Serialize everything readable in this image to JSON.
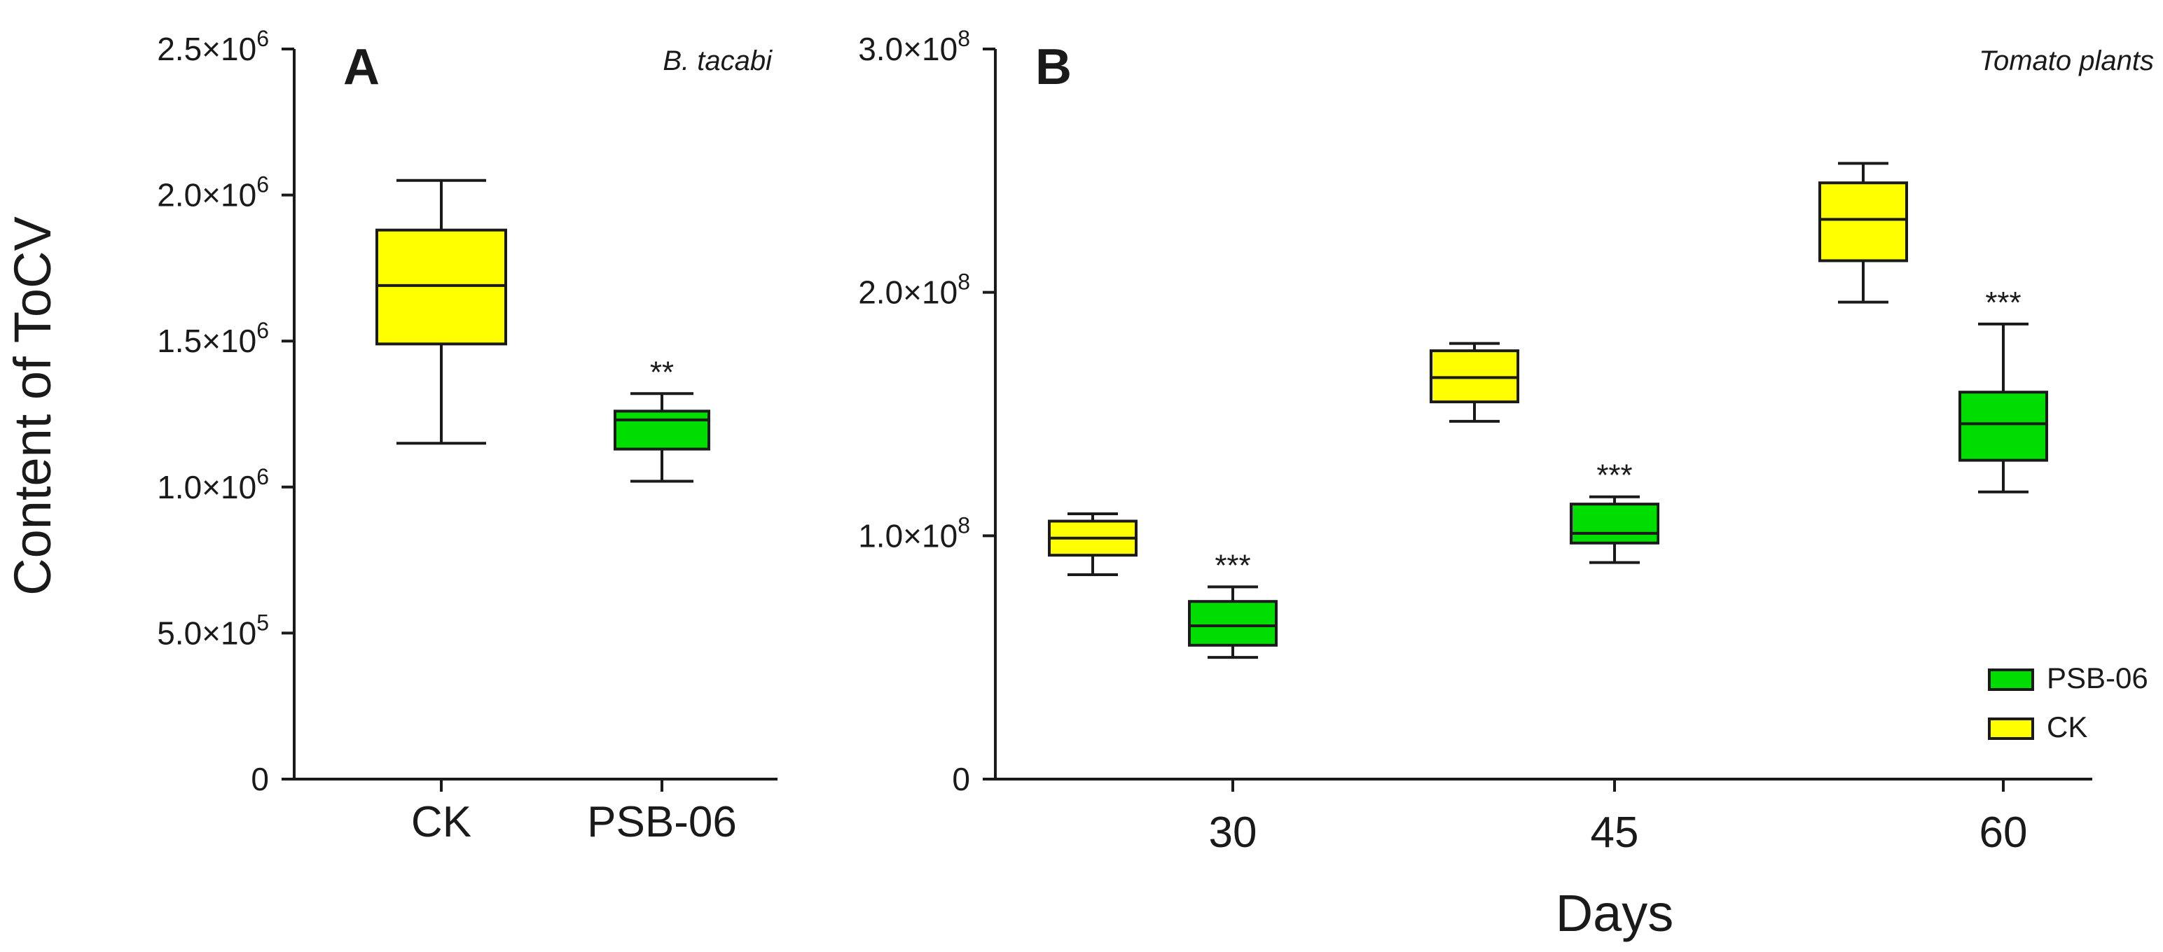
{
  "colors": {
    "CK": "#ffff00",
    "PSB-06": "#00dd00",
    "stroke": "#1a1a1a"
  },
  "chart_data": [
    {
      "type": "box",
      "panel_letter": "A",
      "title": "B. tacabi",
      "ylabel": "Content of ToCV",
      "xlabel": "",
      "ylim": [
        0,
        2500000
      ],
      "ytick_values": [
        0,
        500000,
        1000000,
        1500000,
        2000000,
        2500000
      ],
      "ytick_labels": [
        {
          "mant": "0",
          "exp": ""
        },
        {
          "mant": "5.0×10",
          "exp": "5"
        },
        {
          "mant": "1.0×10",
          "exp": "6"
        },
        {
          "mant": "1.5×10",
          "exp": "6"
        },
        {
          "mant": "2.0×10",
          "exp": "6"
        },
        {
          "mant": "2.5×10",
          "exp": "6"
        }
      ],
      "categories": [
        "CK",
        "PSB-06"
      ],
      "boxes": [
        {
          "group": "CK",
          "category": "CK",
          "min": 1150000,
          "q1": 1490000,
          "median": 1690000,
          "q3": 1880000,
          "max": 2050000,
          "significance": ""
        },
        {
          "group": "PSB-06",
          "category": "PSB-06",
          "min": 1020000,
          "q1": 1130000,
          "median": 1230000,
          "q3": 1260000,
          "max": 1320000,
          "significance": "**"
        }
      ]
    },
    {
      "type": "box",
      "panel_letter": "B",
      "title": "Tomato plants",
      "ylabel": "",
      "xlabel": "Days",
      "ylim": [
        0,
        300000000
      ],
      "ytick_values": [
        0,
        100000000,
        200000000,
        300000000
      ],
      "ytick_labels": [
        {
          "mant": "0",
          "exp": ""
        },
        {
          "mant": "1.0×10",
          "exp": "8"
        },
        {
          "mant": "2.0×10",
          "exp": "8"
        },
        {
          "mant": "3.0×10",
          "exp": "8"
        }
      ],
      "categories": [
        "30",
        "45",
        "60"
      ],
      "legend": [
        "PSB-06",
        "CK"
      ],
      "boxes": [
        {
          "group": "CK",
          "category": "30",
          "min": 84000000,
          "q1": 92000000,
          "median": 99000000,
          "q3": 106000000,
          "max": 109000000,
          "significance": ""
        },
        {
          "group": "PSB-06",
          "category": "30",
          "min": 50000000,
          "q1": 55000000,
          "median": 63000000,
          "q3": 73000000,
          "max": 79000000,
          "significance": "***"
        },
        {
          "group": "CK",
          "category": "45",
          "min": 147000000,
          "q1": 155000000,
          "median": 165000000,
          "q3": 176000000,
          "max": 179000000,
          "significance": ""
        },
        {
          "group": "PSB-06",
          "category": "45",
          "min": 89000000,
          "q1": 97000000,
          "median": 101000000,
          "q3": 113000000,
          "max": 116000000,
          "significance": "***"
        },
        {
          "group": "CK",
          "category": "60",
          "min": 196000000,
          "q1": 213000000,
          "median": 230000000,
          "q3": 245000000,
          "max": 253000000,
          "significance": ""
        },
        {
          "group": "PSB-06",
          "category": "60",
          "min": 118000000,
          "q1": 131000000,
          "median": 146000000,
          "q3": 159000000,
          "max": 187000000,
          "significance": "***"
        }
      ]
    }
  ]
}
